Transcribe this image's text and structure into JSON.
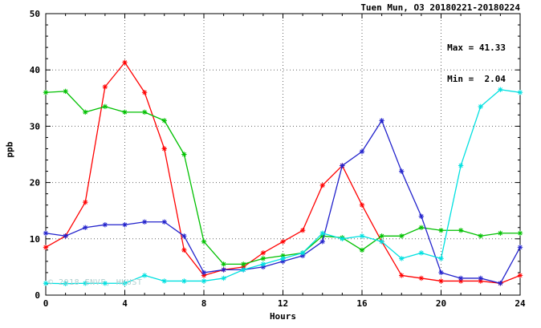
{
  "header": {
    "title": "Tuen Mun, O3 20180221-20180224"
  },
  "annotation": {
    "max_label": "Max = 41.33",
    "min_label": "Min =  2.04"
  },
  "watermark": "© 2018 ENVF, HKUST",
  "chart_data": {
    "type": "line",
    "title": "Tuen Mun, O3 20180221-20180224",
    "xlabel": "Hours",
    "ylabel": "ppb",
    "xlim": [
      0,
      24
    ],
    "ylim": [
      0,
      50
    ],
    "xticks": [
      0,
      4,
      8,
      12,
      16,
      20,
      24
    ],
    "yticks": [
      0,
      10,
      20,
      30,
      40,
      50
    ],
    "x_minor_step": 1,
    "y_minor_step": 2,
    "grid": true,
    "legend": "none",
    "stats": {
      "max": 41.33,
      "min": 2.04
    },
    "x": [
      0,
      1,
      2,
      3,
      4,
      5,
      6,
      7,
      8,
      9,
      10,
      11,
      12,
      13,
      14,
      15,
      16,
      17,
      18,
      19,
      20,
      21,
      22,
      23,
      24
    ],
    "series": [
      {
        "name": "red",
        "color": "#ff0000",
        "values": [
          8.5,
          10.5,
          16.5,
          37,
          41.33,
          36,
          26,
          8,
          3.5,
          4.5,
          5,
          7.5,
          9.5,
          11.5,
          19.5,
          23,
          16,
          9.5,
          3.5,
          3,
          2.5,
          2.5,
          2.5,
          2.1,
          3.5
        ]
      },
      {
        "name": "green",
        "color": "#00c000",
        "values": [
          36,
          36.2,
          32.5,
          33.5,
          32.5,
          32.5,
          31,
          25,
          9.5,
          5.5,
          5.5,
          6.5,
          7,
          7.5,
          10.5,
          10.2,
          8,
          10.5,
          10.5,
          12,
          11.5,
          11.5,
          10.5,
          11,
          11
        ]
      },
      {
        "name": "blue",
        "color": "#2222cc",
        "values": [
          11,
          10.5,
          12,
          12.5,
          12.5,
          13,
          13,
          10.5,
          4,
          4.5,
          4.5,
          5,
          6,
          7,
          9.5,
          23,
          25.5,
          31,
          22,
          14,
          4,
          3,
          3,
          2.1,
          8.5
        ]
      },
      {
        "name": "cyan",
        "color": "#00e0e0",
        "values": [
          2.1,
          2.04,
          2.1,
          2.1,
          2.1,
          3.5,
          2.5,
          2.5,
          2.5,
          3,
          4.5,
          5.5,
          6.5,
          7.5,
          11,
          10,
          10.5,
          9.5,
          6.5,
          7.5,
          6.5,
          23,
          33.5,
          36.5,
          36
        ]
      }
    ]
  }
}
